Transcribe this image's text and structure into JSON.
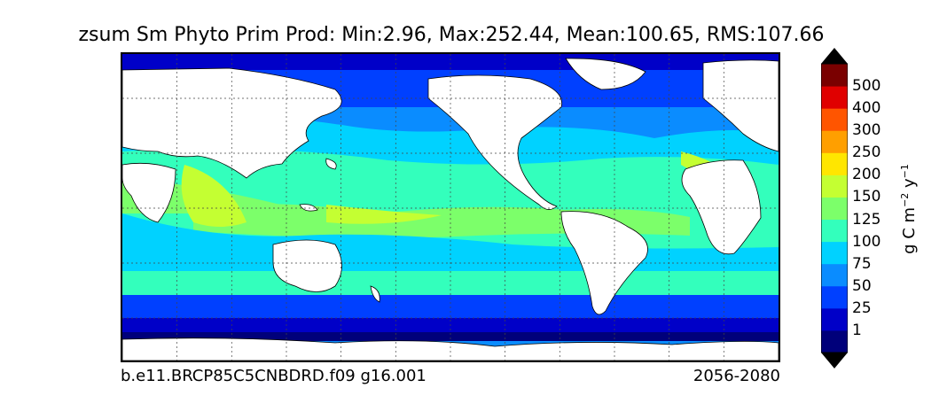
{
  "title": "zsum Sm Phyto Prim Prod: Min:2.96, Max:252.44, Mean:100.65, RMS:107.66",
  "caption_left": "b.e11.BRCP85C5CNBDRD.f09 g16.001",
  "caption_right": "2056-2080",
  "colorbar": {
    "unit": {
      "base": "g C m",
      "exp1": "−2",
      "mid": " y",
      "exp2": "−1"
    },
    "ticks": [
      "1",
      "25",
      "50",
      "75",
      "100",
      "125",
      "150",
      "200",
      "250",
      "300",
      "400",
      "500"
    ],
    "colors": [
      "#00007a",
      "#0000c8",
      "#0040ff",
      "#0a8cff",
      "#00d2ff",
      "#33ffbc",
      "#7cff6a",
      "#c4ff32",
      "#ffe600",
      "#ff9f00",
      "#ff5500",
      "#e00000",
      "#7a0000"
    ],
    "under_color": "#000000",
    "over_color": "#000000"
  },
  "map": {
    "land_color": "#ffffff",
    "grid": true,
    "grid_style": "dotted",
    "projection": "cylindrical"
  }
}
